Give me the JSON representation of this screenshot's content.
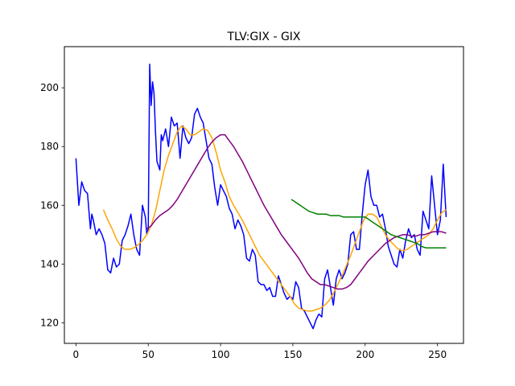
{
  "chart_data": {
    "type": "line",
    "title": "TLV:GIX - GIX",
    "xlabel": "",
    "ylabel": "",
    "xlim": [
      -8,
      268
    ],
    "ylim": [
      113,
      214
    ],
    "xticks": [
      0,
      50,
      100,
      150,
      200,
      250
    ],
    "yticks": [
      120,
      140,
      160,
      180,
      200
    ],
    "grid": false,
    "legend": "none",
    "series": [
      {
        "color": "#0000ff",
        "x": [
          0,
          2,
          4,
          6,
          8,
          10,
          11,
          12,
          14,
          16,
          18,
          20,
          22,
          24,
          26,
          28,
          30,
          32,
          34,
          36,
          38,
          40,
          42,
          44,
          46,
          48,
          49,
          50,
          51,
          52,
          53,
          54,
          55,
          56,
          58,
          59,
          60,
          62,
          64,
          66,
          68,
          70,
          72,
          74,
          76,
          78,
          80,
          82,
          84,
          86,
          88,
          90,
          92,
          94,
          96,
          98,
          100,
          102,
          104,
          106,
          108,
          110,
          112,
          114,
          116,
          118,
          120,
          122,
          124,
          126,
          128,
          130,
          132,
          134,
          136,
          138,
          140,
          142,
          144,
          146,
          148,
          150,
          152,
          154,
          156,
          158,
          160,
          162,
          164,
          166,
          168,
          170,
          172,
          174,
          176,
          178,
          180,
          182,
          184,
          186,
          188,
          190,
          192,
          194,
          196,
          198,
          200,
          202,
          204,
          206,
          208,
          210,
          212,
          214,
          216,
          218,
          220,
          222,
          224,
          226,
          228,
          230,
          232,
          234,
          236,
          238,
          240,
          242,
          244,
          246,
          248,
          250,
          252,
          254,
          256
        ],
        "values": [
          176,
          160,
          168,
          165,
          164,
          152,
          157,
          155,
          150,
          152,
          150,
          147,
          138,
          137,
          142,
          139,
          140,
          148,
          150,
          153,
          157,
          150,
          145,
          143,
          160,
          156,
          150,
          152,
          208,
          194,
          202,
          198,
          185,
          175,
          172,
          184,
          182,
          186,
          180,
          190,
          187,
          188,
          176,
          187,
          183,
          181,
          183,
          191,
          193,
          190,
          188,
          182,
          176,
          174,
          166,
          160,
          167,
          165,
          163,
          159,
          157,
          152,
          155,
          153,
          150,
          142,
          141,
          145,
          143,
          134,
          133,
          133,
          131,
          132,
          129,
          129,
          136,
          133,
          130,
          128,
          129,
          128,
          134,
          132,
          125,
          124,
          122,
          120,
          118,
          121,
          123,
          122,
          135,
          138,
          132,
          126,
          135,
          138,
          135,
          137,
          140,
          150,
          151,
          145,
          145,
          157,
          167,
          172,
          163,
          160,
          160,
          156,
          157,
          152,
          146,
          143,
          140,
          139,
          145,
          142,
          148,
          152,
          149,
          150,
          145,
          143,
          158,
          155,
          152,
          170,
          160,
          150,
          155,
          174,
          156
        ],
        "note": ""
      },
      {
        "color": "#ffa500",
        "x": [
          19,
          22,
          25,
          28,
          31,
          34,
          37,
          40,
          43,
          46,
          49,
          52,
          55,
          58,
          61,
          64,
          67,
          70,
          73,
          76,
          79,
          82,
          85,
          88,
          91,
          94,
          97,
          100,
          103,
          106,
          109,
          112,
          115,
          118,
          121,
          124,
          127,
          130,
          133,
          136,
          139,
          142,
          145,
          148,
          151,
          154,
          157,
          160,
          163,
          166,
          169,
          172,
          175,
          178,
          181,
          184,
          187,
          190,
          193,
          196,
          199,
          202,
          205,
          208,
          211,
          214,
          217,
          220,
          223,
          226,
          229,
          232,
          235,
          238,
          241,
          244,
          247,
          250,
          253,
          256
        ],
        "values": [
          158.5,
          155,
          152,
          148.5,
          146,
          145,
          145,
          145.5,
          146.5,
          148,
          150,
          153,
          158,
          165,
          172,
          177,
          181,
          185,
          187,
          186,
          184,
          184,
          185,
          186,
          185.5,
          183,
          178,
          172,
          168,
          163,
          160,
          157.5,
          155,
          152,
          149,
          146,
          143,
          141,
          139,
          137,
          135,
          133,
          131,
          129,
          126.5,
          125,
          124.5,
          124,
          124,
          124.5,
          125,
          126,
          127.5,
          130,
          133,
          136,
          139.5,
          143,
          147,
          151,
          155,
          157,
          157,
          156,
          153,
          150,
          148,
          146.5,
          145,
          144.5,
          145,
          146,
          147,
          148,
          149,
          150,
          152,
          155,
          157.5,
          158.5
        ]
      },
      {
        "color": "#800080",
        "x": [
          49,
          52,
          55,
          58,
          61,
          64,
          67,
          70,
          73,
          76,
          79,
          82,
          85,
          88,
          91,
          94,
          97,
          100,
          103,
          106,
          109,
          112,
          115,
          118,
          121,
          124,
          127,
          130,
          133,
          136,
          139,
          142,
          145,
          148,
          151,
          154,
          157,
          160,
          163,
          166,
          169,
          172,
          175,
          178,
          181,
          184,
          187,
          190,
          193,
          196,
          199,
          202,
          205,
          208,
          211,
          214,
          217,
          220,
          223,
          226,
          229,
          232,
          235,
          238,
          241,
          244,
          247,
          250,
          253,
          256
        ],
        "values": [
          152,
          153,
          155,
          156.5,
          157.5,
          158.5,
          160,
          162,
          164.5,
          167,
          169.5,
          172,
          174.5,
          177,
          179.5,
          181.5,
          183,
          184,
          184,
          182,
          180,
          177.5,
          175,
          172,
          169,
          166,
          163,
          160,
          157.5,
          155,
          152.5,
          150,
          148,
          146,
          144,
          142,
          139.5,
          137,
          135,
          134,
          133,
          133,
          132.5,
          132,
          131.5,
          131.5,
          132,
          133,
          135,
          137,
          139,
          141,
          142.5,
          144,
          145.5,
          147,
          148,
          149,
          149.5,
          150,
          150,
          149.5,
          149.5,
          150,
          150,
          150.5,
          151,
          151,
          151,
          150.5
        ]
      },
      {
        "color": "#008000",
        "x": [
          149,
          152,
          155,
          158,
          161,
          164,
          167,
          170,
          173,
          176,
          179,
          182,
          185,
          188,
          191,
          194,
          197,
          200,
          203,
          206,
          209,
          212,
          215,
          218,
          221,
          224,
          227,
          230,
          233,
          236,
          239,
          242,
          245,
          248,
          251,
          254,
          256
        ],
        "values": [
          162,
          161,
          160,
          159,
          158,
          157.5,
          157,
          157,
          157,
          156.5,
          156.5,
          156.5,
          156,
          156,
          156,
          156,
          156,
          156,
          155,
          154,
          153,
          152,
          151,
          150,
          149.5,
          149,
          148.5,
          148,
          147.5,
          147,
          146,
          145.5,
          145.5,
          145.5,
          145.5,
          145.5,
          145.5
        ]
      }
    ]
  }
}
